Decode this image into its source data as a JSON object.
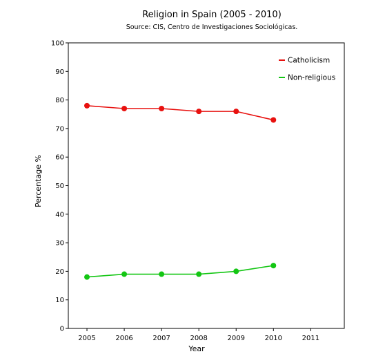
{
  "chart_data": {
    "type": "line",
    "title": "Religion in Spain (2005 - 2010)",
    "subtitle": "Source: CIS, Centro de Investigaciones Sociológicas.",
    "xlabel": "Year",
    "ylabel": "Percentage %",
    "xlim": [
      2004.5,
      2011.9
    ],
    "ylim": [
      0,
      100
    ],
    "xticks": [
      "2005",
      "2006",
      "2007",
      "2008",
      "2009",
      "2010",
      "2011"
    ],
    "yticks": [
      "0",
      "10",
      "20",
      "30",
      "40",
      "50",
      "60",
      "70",
      "80",
      "90",
      "100"
    ],
    "x": [
      2005,
      2006,
      2007,
      2008,
      2009,
      2010
    ],
    "grid": false,
    "legend_position": "top-right",
    "series": [
      {
        "name": "Catholicism",
        "color": "#e8110f",
        "values": [
          78,
          77,
          77,
          76,
          76,
          73
        ]
      },
      {
        "name": "Non-religious",
        "color": "#13c613",
        "values": [
          18,
          19,
          19,
          19,
          20,
          22
        ]
      }
    ]
  }
}
